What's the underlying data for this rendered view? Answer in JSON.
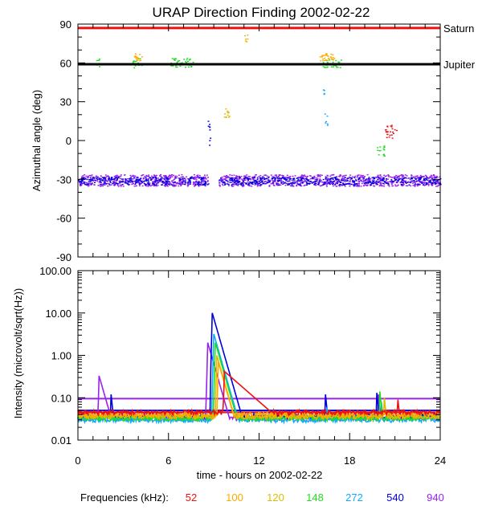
{
  "title": "URAP Direction Finding  2002-02-22",
  "colors": {
    "52": "#ee1111",
    "100": "#ffaa00",
    "120": "#ddbb00",
    "148": "#22dd22",
    "272": "#11aaff",
    "540": "#0000dd",
    "940": "#9922ee",
    "saturn_line": "#ee1111",
    "jupiter_line": "#000000"
  },
  "chart_data": [
    {
      "type": "scatter",
      "title": "URAP Direction Finding  2002-02-22",
      "xlabel": "",
      "ylabel": "Azimuthal angle (deg)",
      "xlim": [
        0,
        24
      ],
      "ylim": [
        -90,
        90
      ],
      "yticks": [
        "90",
        "60",
        "30",
        "0",
        "-30",
        "-60",
        "-90"
      ],
      "reference_lines": [
        {
          "name": "Saturn",
          "y": 87,
          "color": "saturn_line"
        },
        {
          "name": "Jupiter",
          "y": 59,
          "color": "jupiter_line"
        }
      ],
      "series": [
        {
          "name": "940",
          "clusters": [
            {
              "x": [
                0,
                8.6
              ],
              "y": [
                -35,
                -26
              ]
            },
            {
              "x": [
                9.3,
                24
              ],
              "y": [
                -35,
                -26
              ]
            }
          ]
        },
        {
          "name": "540",
          "clusters": [
            {
              "x": [
                0,
                8.6
              ],
              "y": [
                -34,
                -28
              ]
            },
            {
              "x": [
                9.3,
                24
              ],
              "y": [
                -34,
                -28
              ]
            },
            {
              "x": [
                8.5,
                8.8
              ],
              "y": [
                -5,
                20
              ]
            }
          ]
        },
        {
          "name": "148",
          "clusters": [
            {
              "x": [
                1.2,
                1.4
              ],
              "y": [
                57,
                65
              ]
            },
            {
              "x": [
                3.6,
                4.2
              ],
              "y": [
                56,
                64
              ]
            },
            {
              "x": [
                6.1,
                7.6
              ],
              "y": [
                57,
                64
              ]
            },
            {
              "x": [
                16.2,
                17.4
              ],
              "y": [
                56,
                63
              ]
            },
            {
              "x": [
                19.8,
                20.3
              ],
              "y": [
                -12,
                -2
              ]
            }
          ]
        },
        {
          "name": "120",
          "clusters": [
            {
              "x": [
                9.6,
                10.0
              ],
              "y": [
                18,
                25
              ]
            },
            {
              "x": [
                11.0,
                11.2
              ],
              "y": [
                75,
                82
              ]
            }
          ]
        },
        {
          "name": "100",
          "clusters": [
            {
              "x": [
                3.7,
                4.2
              ],
              "y": [
                62,
                68
              ]
            },
            {
              "x": [
                16.0,
                17.0
              ],
              "y": [
                62,
                68
              ]
            }
          ]
        },
        {
          "name": "272",
          "clusters": [
            {
              "x": [
                16.3,
                16.5
              ],
              "y": [
                10,
                22
              ]
            },
            {
              "x": [
                16.2,
                16.3
              ],
              "y": [
                36,
                40
              ]
            }
          ]
        },
        {
          "name": "52",
          "clusters": [
            {
              "x": [
                20.3,
                21.1
              ],
              "y": [
                2,
                13
              ]
            }
          ]
        }
      ]
    },
    {
      "type": "line",
      "title": "",
      "xlabel": "time - hours on 2002-02-22",
      "ylabel": "Intensity (microvolt/sqrt(Hz))",
      "xscale": "linear",
      "yscale": "log",
      "xlim": [
        0,
        24
      ],
      "ylim": [
        0.01,
        100
      ],
      "xticks": [
        "0",
        "6",
        "12",
        "18",
        "24"
      ],
      "yticks": [
        "100.00",
        "10.00",
        "1.00",
        "0.10",
        "0.01"
      ],
      "series": [
        {
          "name": "940",
          "baseline": 0.033,
          "level_line": 0.095,
          "peaks": [
            {
              "x": 8.6,
              "y": 2.0
            },
            {
              "x": 1.4,
              "y": 0.33
            },
            {
              "x": 19.9,
              "y": 0.12
            }
          ]
        },
        {
          "name": "540",
          "baseline": 0.037,
          "level_line": 0.05,
          "peaks": [
            {
              "x": 8.9,
              "y": 10.0
            },
            {
              "x": 2.2,
              "y": 0.12
            },
            {
              "x": 16.4,
              "y": 0.12
            },
            {
              "x": 19.8,
              "y": 0.13
            }
          ]
        },
        {
          "name": "272",
          "baseline": 0.03,
          "peaks": [
            {
              "x": 9.0,
              "y": 3.2
            },
            {
              "x": 16.5,
              "y": 0.06
            },
            {
              "x": 20.1,
              "y": 0.08
            }
          ]
        },
        {
          "name": "148",
          "baseline": 0.033,
          "peaks": [
            {
              "x": 9.1,
              "y": 2.0
            },
            {
              "x": 20.0,
              "y": 0.14
            }
          ]
        },
        {
          "name": "120",
          "baseline": 0.036,
          "peaks": [
            {
              "x": 9.2,
              "y": 1.0
            },
            {
              "x": 20.3,
              "y": 0.1
            }
          ]
        },
        {
          "name": "100",
          "baseline": 0.04,
          "peaks": [
            {
              "x": 9.3,
              "y": 0.7
            }
          ]
        },
        {
          "name": "52",
          "baseline": 0.045,
          "level_line": 0.045,
          "peaks": [
            {
              "x": 9.7,
              "y": 0.42
            },
            {
              "x": 21.2,
              "y": 0.09
            }
          ]
        }
      ]
    }
  ],
  "legend": {
    "label": "Frequencies (kHz):",
    "items": [
      "52",
      "100",
      "120",
      "148",
      "272",
      "540",
      "940"
    ]
  }
}
